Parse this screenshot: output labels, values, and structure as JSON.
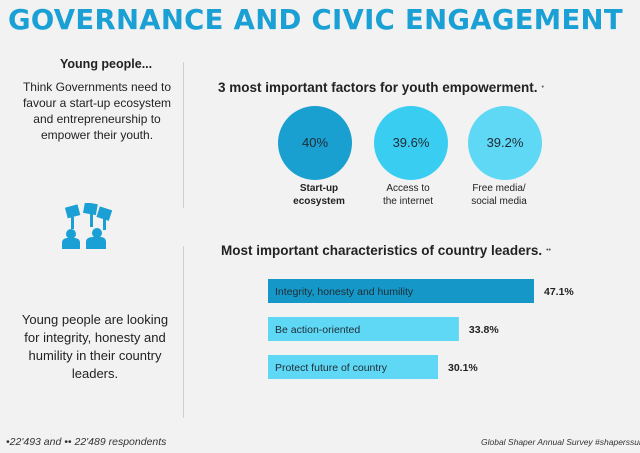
{
  "header": {
    "title": "GOVERNANCE AND CIVIC ENGAGEMENT"
  },
  "left": {
    "heading": "Young people...",
    "text1": "Think Governments need to favour a start-up ecosystem and entrepreneurship to empower their youth.",
    "text2": "Young people are looking for integrity, honesty and humility in their country leaders."
  },
  "footer": {
    "respondents": "•22'493 and •• 22'489 respondents",
    "source": "Global Shaper Annual Survey #shaperssurvey"
  },
  "colors": {
    "title": "#1aa0d4",
    "bar_dark": "#1598c8",
    "bar_light": "#5fd8f6",
    "circle_1": "#1a9fd1",
    "circle_2": "#39cdf2",
    "circle_3": "#5fd8f6",
    "icon": "#1aa0d4"
  },
  "icon": {
    "name": "people-holding-signs-icon"
  },
  "chart_data": [
    {
      "type": "bubble",
      "title": "3 most important factors for youth empowerment.",
      "note": "•",
      "categories": [
        "Start-up ecosystem",
        "Access to the internet",
        "Free media/ social media"
      ],
      "values": [
        40,
        39.6,
        39.2
      ],
      "value_labels": [
        "40%",
        "39.6%",
        "39.2%"
      ],
      "label_lines": [
        [
          "Start-up",
          "ecosystem"
        ],
        [
          "Access to",
          "the internet"
        ],
        [
          "Free media/",
          "social media"
        ]
      ],
      "highlight_index": 0
    },
    {
      "type": "bar",
      "orientation": "horizontal",
      "title": "Most important characteristics of country leaders.",
      "note": "••",
      "categories": [
        "Integrity, honesty and humility",
        "Be action-oriented",
        "Protect future of country"
      ],
      "values": [
        47.1,
        33.8,
        30.1
      ],
      "value_labels": [
        "47.1%",
        "33.8%",
        "30.1%"
      ],
      "unit": "%"
    }
  ]
}
